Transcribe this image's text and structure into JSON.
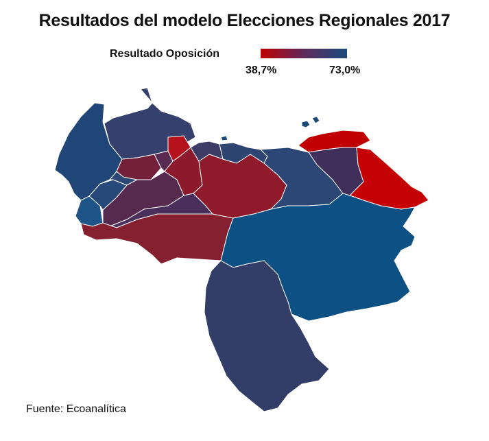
{
  "title": "Resultados del modelo Elecciones Regionales 2017",
  "legend": {
    "label": "Resultado Oposición",
    "min_label": "38,7%",
    "max_label": "73,0%",
    "min_color": "#c00000",
    "max_color": "#1b4b7c"
  },
  "source": "Fuente:  Ecoanalítica"
}
